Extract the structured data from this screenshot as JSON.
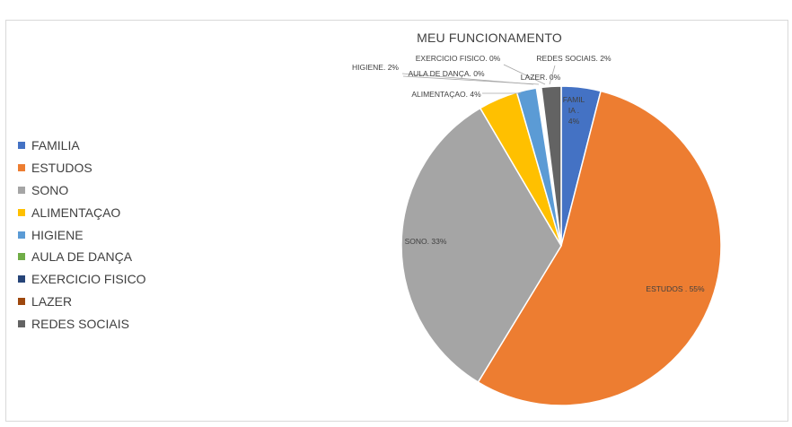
{
  "chart_data": {
    "type": "pie",
    "title": "MEU FUNCIONAMENTO",
    "categories": [
      "FAMILIA",
      "ESTUDOS",
      "SONO",
      "ALIMENTAÇAO",
      "HIGIENE",
      "AULA DE DANÇA",
      "EXERCICIO FISICO",
      "LAZER",
      "REDES SOCIAIS"
    ],
    "values": [
      4,
      55,
      33,
      4,
      2,
      0,
      0,
      0,
      2
    ],
    "colors": [
      "#4472c4",
      "#ed7d31",
      "#a5a5a5",
      "#ffc000",
      "#5b9bd5",
      "#70ad47",
      "#264478",
      "#9e480e",
      "#636363"
    ],
    "data_labels": [
      "FAMILIA . 4%",
      "ESTUDOS . 55%",
      "SONO. 33%",
      "ALIMENTAÇAO. 4%",
      "HIGIENE. 2%",
      "AULA DE DANÇA. 0%",
      "EXERCICIO FISICO. 0%",
      "LAZER. 0%",
      "REDES SOCIAIS. 2%"
    ],
    "legend_position": "left"
  }
}
